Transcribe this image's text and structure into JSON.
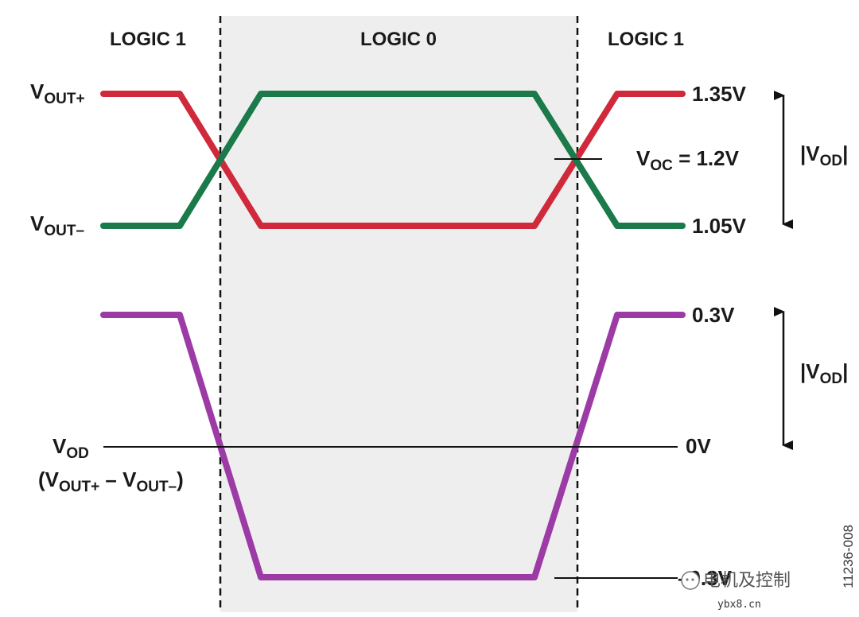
{
  "headers": {
    "logic1_left": "LOGIC 1",
    "logic0": "LOGIC 0",
    "logic1_right": "LOGIC 1"
  },
  "signals": {
    "vout_plus": {
      "base": "V",
      "sub": "OUT+"
    },
    "vout_minus": {
      "base": "V",
      "sub": "OUT–"
    },
    "vod": {
      "base": "V",
      "sub": "OD"
    },
    "vod_expr": {
      "open": "(V",
      "sub1": "OUT+",
      "mid": " – V",
      "sub2": "OUT–",
      "close": ")"
    }
  },
  "levels": {
    "high": "1.35V",
    "low": "1.05V",
    "voc_base": "V",
    "voc_sub": "OC",
    "voc_value": " = 1.2V",
    "vod_high": "0.3V",
    "vod_zero": "0V",
    "vod_low": "–0.3V"
  },
  "annotations": {
    "swing_top": {
      "open": "|V",
      "sub": "OD",
      "close": "|"
    },
    "swing_bottom": {
      "open": "|V",
      "sub": "OD",
      "close": "|"
    }
  },
  "figure_id": "11236-008",
  "watermark": {
    "text": "电机及控制",
    "site": "ybx8.cn"
  },
  "colors": {
    "vout_plus": "#d0293b",
    "vout_minus": "#1a7a4a",
    "vod": "#9c3aa6",
    "shade": "#eeeeee",
    "line": "#111111"
  }
}
